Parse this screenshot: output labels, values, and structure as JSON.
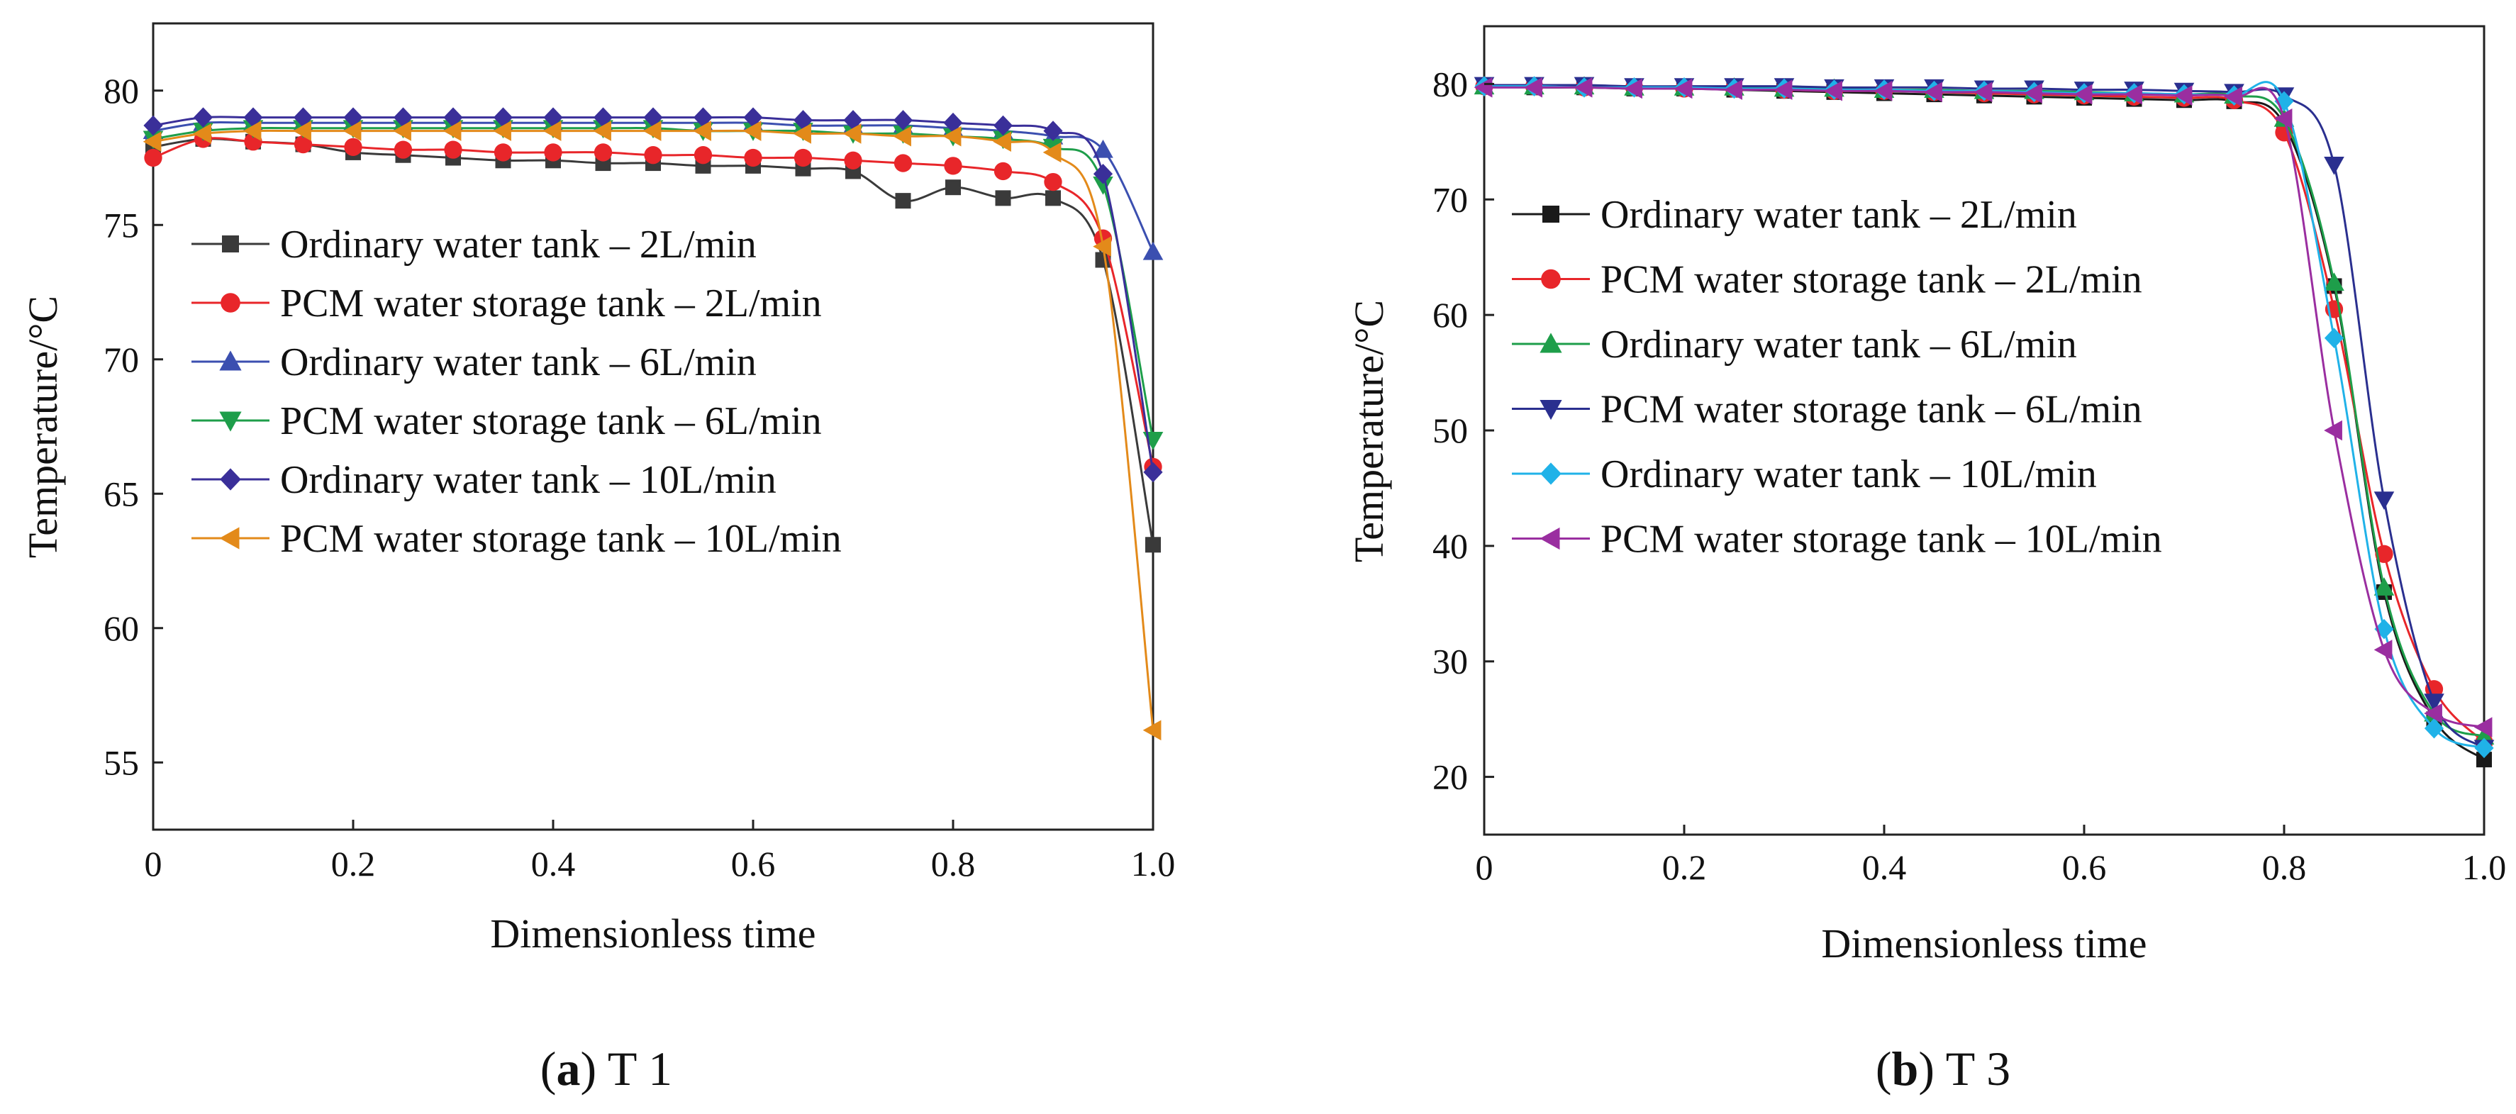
{
  "chart_data": [
    {
      "type": "line",
      "caption": {
        "letter": "a",
        "text": "T 1"
      },
      "xlabel": "Dimensionless time",
      "ylabel": "Temperature/°C",
      "xlim": [
        0,
        1.0
      ],
      "ylim": [
        52.5,
        82.5
      ],
      "xticks": [
        "0",
        "0.2",
        "0.4",
        "0.6",
        "0.8",
        "1.0"
      ],
      "yticks": [
        "55",
        "60",
        "65",
        "70",
        "75",
        "80"
      ],
      "legend_position": "left",
      "x": [
        0,
        0.05,
        0.1,
        0.15,
        0.2,
        0.25,
        0.3,
        0.35,
        0.4,
        0.45,
        0.5,
        0.55,
        0.6,
        0.65,
        0.7,
        0.75,
        0.8,
        0.85,
        0.9,
        0.95,
        1.0
      ],
      "series": [
        {
          "name": "Ordinary water tank – 2L/min",
          "color": "#3a3a3a",
          "marker": "square",
          "values": [
            77.9,
            78.2,
            78.1,
            78.0,
            77.7,
            77.6,
            77.5,
            77.4,
            77.4,
            77.3,
            77.3,
            77.2,
            77.2,
            77.1,
            77.0,
            75.9,
            76.4,
            76.0,
            76.0,
            73.7,
            63.1
          ]
        },
        {
          "name": "PCM water storage tank – 2L/min",
          "color": "#e8262a",
          "marker": "circle",
          "values": [
            77.5,
            78.2,
            78.1,
            78.0,
            77.9,
            77.8,
            77.8,
            77.7,
            77.7,
            77.7,
            77.6,
            77.6,
            77.5,
            77.5,
            77.4,
            77.3,
            77.2,
            77.0,
            76.6,
            74.5,
            66.0
          ]
        },
        {
          "name": "Ordinary water tank – 6L/min",
          "color": "#3b4fb0",
          "marker": "triangle-up",
          "values": [
            78.5,
            78.8,
            78.8,
            78.8,
            78.8,
            78.8,
            78.8,
            78.8,
            78.8,
            78.8,
            78.8,
            78.8,
            78.8,
            78.7,
            78.7,
            78.7,
            78.6,
            78.5,
            78.3,
            77.8,
            74.0
          ]
        },
        {
          "name": "PCM water storage tank – 6L/min",
          "color": "#1e9e4a",
          "marker": "triangle-down",
          "values": [
            78.2,
            78.5,
            78.6,
            78.6,
            78.6,
            78.6,
            78.6,
            78.6,
            78.6,
            78.6,
            78.6,
            78.5,
            78.5,
            78.5,
            78.4,
            78.4,
            78.3,
            78.2,
            77.9,
            76.5,
            67.0
          ]
        },
        {
          "name": "Ordinary water tank – 10L/min",
          "color": "#3a2f99",
          "marker": "diamond",
          "values": [
            78.7,
            79.0,
            79.0,
            79.0,
            79.0,
            79.0,
            79.0,
            79.0,
            79.0,
            79.0,
            79.0,
            79.0,
            79.0,
            78.9,
            78.9,
            78.9,
            78.8,
            78.7,
            78.5,
            76.9,
            65.8
          ]
        },
        {
          "name": "PCM water storage tank – 10L/min",
          "color": "#e38a1a",
          "marker": "triangle-left",
          "values": [
            78.1,
            78.4,
            78.5,
            78.5,
            78.5,
            78.5,
            78.5,
            78.5,
            78.5,
            78.5,
            78.5,
            78.5,
            78.5,
            78.4,
            78.4,
            78.3,
            78.3,
            78.1,
            77.7,
            74.2,
            56.2
          ]
        }
      ]
    },
    {
      "type": "line",
      "caption": {
        "letter": "b",
        "text": "T 3"
      },
      "xlabel": "Dimensionless time",
      "ylabel": "Temperature/°C",
      "xlim": [
        0,
        1.0
      ],
      "ylim": [
        15,
        85
      ],
      "xticks": [
        "0",
        "0.2",
        "0.4",
        "0.6",
        "0.8",
        "1.0"
      ],
      "yticks": [
        "20",
        "30",
        "40",
        "50",
        "60",
        "70",
        "80"
      ],
      "legend_position": "left",
      "x": [
        0,
        0.05,
        0.1,
        0.15,
        0.2,
        0.25,
        0.3,
        0.35,
        0.4,
        0.45,
        0.5,
        0.55,
        0.6,
        0.65,
        0.7,
        0.75,
        0.8,
        0.85,
        0.9,
        0.95,
        1.0
      ],
      "series": [
        {
          "name": "Ordinary water tank – 2L/min",
          "color": "#1a1a1a",
          "marker": "square",
          "values": [
            79.8,
            79.7,
            79.7,
            79.6,
            79.6,
            79.5,
            79.4,
            79.3,
            79.2,
            79.1,
            79.0,
            78.9,
            78.8,
            78.7,
            78.6,
            78.5,
            76.5,
            62.5,
            36.0,
            25.0,
            21.5
          ]
        },
        {
          "name": "PCM water storage tank – 2L/min",
          "color": "#e8262a",
          "marker": "circle",
          "values": [
            79.8,
            79.8,
            79.7,
            79.7,
            79.6,
            79.6,
            79.5,
            79.4,
            79.4,
            79.3,
            79.2,
            79.1,
            79.0,
            78.9,
            78.8,
            78.6,
            75.8,
            60.5,
            39.3,
            27.6,
            23.0
          ]
        },
        {
          "name": "Ordinary water tank – 6L/min",
          "color": "#1e9e4a",
          "marker": "triangle-up",
          "values": [
            79.8,
            79.8,
            79.8,
            79.7,
            79.7,
            79.7,
            79.6,
            79.6,
            79.5,
            79.5,
            79.4,
            79.4,
            79.3,
            79.2,
            79.1,
            79.0,
            77.0,
            62.8,
            36.4,
            25.5,
            23.5
          ]
        },
        {
          "name": "PCM water storage tank – 6L/min",
          "color": "#2a2f8f",
          "marker": "triangle-down",
          "values": [
            79.9,
            79.9,
            79.9,
            79.8,
            79.8,
            79.8,
            79.8,
            79.7,
            79.7,
            79.7,
            79.6,
            79.6,
            79.5,
            79.5,
            79.4,
            79.3,
            79.0,
            73.0,
            44.0,
            26.5,
            22.5
          ]
        },
        {
          "name": "Ordinary water tank – 10L/min",
          "color": "#20b2e8",
          "marker": "diamond",
          "values": [
            79.8,
            79.8,
            79.7,
            79.7,
            79.7,
            79.6,
            79.6,
            79.5,
            79.5,
            79.4,
            79.4,
            79.3,
            79.2,
            79.2,
            79.1,
            79.0,
            78.5,
            58.0,
            32.8,
            24.2,
            22.5
          ]
        },
        {
          "name": "PCM water storage tank – 10L/min",
          "color": "#9a2ea0",
          "marker": "triangle-left",
          "values": [
            79.7,
            79.7,
            79.7,
            79.6,
            79.6,
            79.5,
            79.5,
            79.4,
            79.4,
            79.3,
            79.3,
            79.2,
            79.1,
            79.1,
            79.0,
            78.9,
            77.0,
            50.0,
            31.0,
            25.5,
            24.3
          ]
        }
      ]
    }
  ]
}
